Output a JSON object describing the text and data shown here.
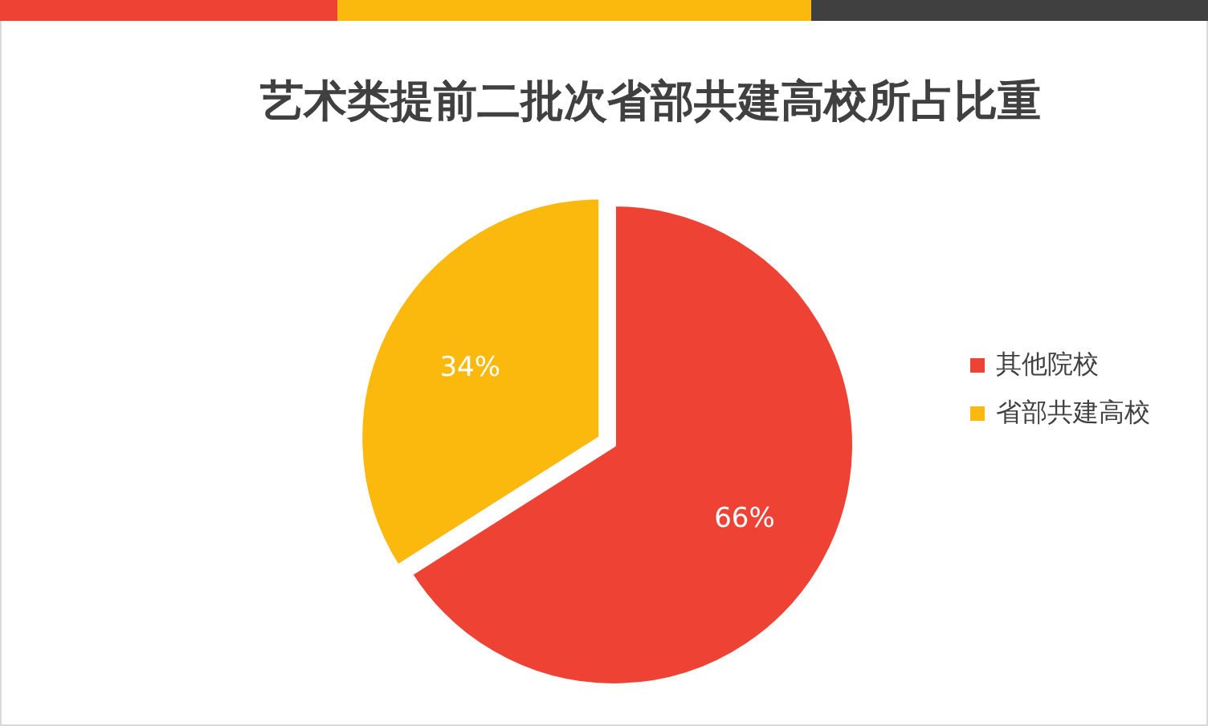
{
  "chart_data": {
    "type": "pie",
    "title": "艺术类提前二批次省部共建高校所占比重",
    "categories": [
      "其他院校",
      "省部共建高校"
    ],
    "values": [
      66,
      34
    ],
    "colors": [
      "#ee4334",
      "#fbb80d"
    ],
    "value_labels": [
      "66%",
      "34%"
    ],
    "legend": "right"
  }
}
